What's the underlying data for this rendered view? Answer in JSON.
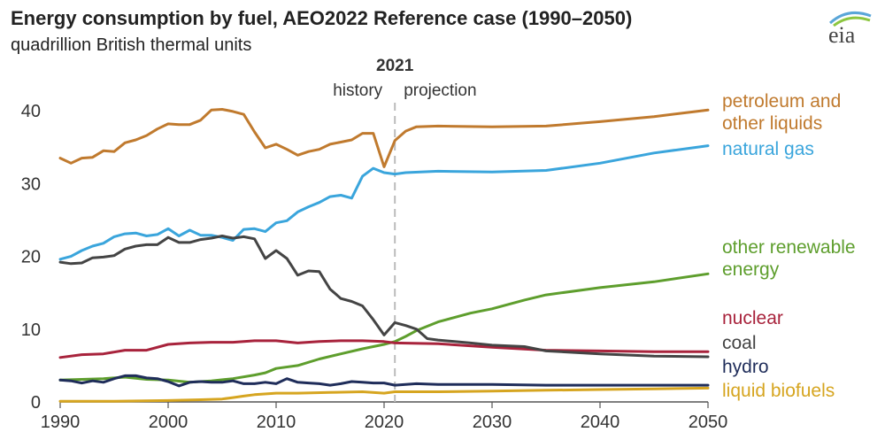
{
  "header": {
    "title": "Energy consumption by fuel, AEO2022 Reference case (1990–2050)",
    "subtitle": "quadrillion British thermal units",
    "logo_text": "eia"
  },
  "chart_data": {
    "type": "line",
    "title": "Energy consumption by fuel, AEO2022 Reference case (1990–2050)",
    "ylabel": "quadrillion British thermal units",
    "xlabel": "",
    "xlim": [
      1990,
      2050
    ],
    "ylim": [
      0,
      45
    ],
    "x_ticks": [
      1990,
      2000,
      2010,
      2020,
      2030,
      2040,
      2050
    ],
    "y_ticks": [
      0,
      10,
      20,
      30,
      40
    ],
    "grid": false,
    "legend": "right-side direct labels",
    "divider": {
      "year": 2021,
      "label": "2021",
      "left_label": "history",
      "right_label": "projection"
    },
    "series": [
      {
        "name": "petroleum and other liquids",
        "label_lines": [
          "petroleum and",
          "other liquids"
        ],
        "color": "#c07a2e",
        "points": [
          [
            1990,
            33.5
          ],
          [
            1991,
            32.8
          ],
          [
            1992,
            33.5
          ],
          [
            1993,
            33.6
          ],
          [
            1994,
            34.5
          ],
          [
            1995,
            34.4
          ],
          [
            1996,
            35.6
          ],
          [
            1997,
            36.0
          ],
          [
            1998,
            36.6
          ],
          [
            1999,
            37.5
          ],
          [
            2000,
            38.2
          ],
          [
            2001,
            38.1
          ],
          [
            2002,
            38.1
          ],
          [
            2003,
            38.7
          ],
          [
            2004,
            40.1
          ],
          [
            2005,
            40.2
          ],
          [
            2006,
            39.9
          ],
          [
            2007,
            39.5
          ],
          [
            2008,
            37.1
          ],
          [
            2009,
            34.9
          ],
          [
            2010,
            35.4
          ],
          [
            2011,
            34.7
          ],
          [
            2012,
            33.9
          ],
          [
            2013,
            34.4
          ],
          [
            2014,
            34.7
          ],
          [
            2015,
            35.4
          ],
          [
            2016,
            35.7
          ],
          [
            2017,
            36.0
          ],
          [
            2018,
            36.9
          ],
          [
            2019,
            36.9
          ],
          [
            2020,
            32.3
          ],
          [
            2021,
            35.9
          ],
          [
            2022,
            37.2
          ],
          [
            2023,
            37.8
          ],
          [
            2025,
            37.9
          ],
          [
            2030,
            37.8
          ],
          [
            2035,
            37.9
          ],
          [
            2040,
            38.5
          ],
          [
            2045,
            39.2
          ],
          [
            2050,
            40.1
          ]
        ]
      },
      {
        "name": "natural gas",
        "label_lines": [
          "natural gas"
        ],
        "color": "#3aa5dc",
        "points": [
          [
            1990,
            19.6
          ],
          [
            1991,
            20.0
          ],
          [
            1992,
            20.8
          ],
          [
            1993,
            21.4
          ],
          [
            1994,
            21.8
          ],
          [
            1995,
            22.7
          ],
          [
            1996,
            23.1
          ],
          [
            1997,
            23.2
          ],
          [
            1998,
            22.8
          ],
          [
            1999,
            23.0
          ],
          [
            2000,
            23.8
          ],
          [
            2001,
            22.8
          ],
          [
            2002,
            23.6
          ],
          [
            2003,
            22.9
          ],
          [
            2004,
            22.9
          ],
          [
            2005,
            22.6
          ],
          [
            2006,
            22.2
          ],
          [
            2007,
            23.7
          ],
          [
            2008,
            23.8
          ],
          [
            2009,
            23.4
          ],
          [
            2010,
            24.6
          ],
          [
            2011,
            24.9
          ],
          [
            2012,
            26.1
          ],
          [
            2013,
            26.8
          ],
          [
            2014,
            27.4
          ],
          [
            2015,
            28.2
          ],
          [
            2016,
            28.4
          ],
          [
            2017,
            28.0
          ],
          [
            2018,
            31.0
          ],
          [
            2019,
            32.1
          ],
          [
            2020,
            31.5
          ],
          [
            2021,
            31.3
          ],
          [
            2022,
            31.5
          ],
          [
            2025,
            31.7
          ],
          [
            2030,
            31.6
          ],
          [
            2035,
            31.8
          ],
          [
            2040,
            32.8
          ],
          [
            2045,
            34.2
          ],
          [
            2050,
            35.2
          ]
        ]
      },
      {
        "name": "other renewable energy",
        "label_lines": [
          "other renewable",
          "energy"
        ],
        "color": "#5e9e2d",
        "points": [
          [
            1990,
            3.0
          ],
          [
            1992,
            3.1
          ],
          [
            1994,
            3.2
          ],
          [
            1996,
            3.4
          ],
          [
            1998,
            3.1
          ],
          [
            2000,
            3.0
          ],
          [
            2002,
            2.7
          ],
          [
            2004,
            2.9
          ],
          [
            2006,
            3.2
          ],
          [
            2008,
            3.7
          ],
          [
            2009,
            4.0
          ],
          [
            2010,
            4.6
          ],
          [
            2012,
            5.0
          ],
          [
            2014,
            5.9
          ],
          [
            2016,
            6.6
          ],
          [
            2018,
            7.3
          ],
          [
            2020,
            7.9
          ],
          [
            2021,
            8.3
          ],
          [
            2022,
            9.0
          ],
          [
            2023,
            9.8
          ],
          [
            2025,
            11.0
          ],
          [
            2028,
            12.2
          ],
          [
            2030,
            12.8
          ],
          [
            2033,
            14.0
          ],
          [
            2035,
            14.7
          ],
          [
            2040,
            15.7
          ],
          [
            2045,
            16.5
          ],
          [
            2050,
            17.6
          ]
        ]
      },
      {
        "name": "nuclear",
        "label_lines": [
          "nuclear"
        ],
        "color": "#a8233c",
        "points": [
          [
            1990,
            6.1
          ],
          [
            1992,
            6.5
          ],
          [
            1994,
            6.6
          ],
          [
            1996,
            7.1
          ],
          [
            1998,
            7.1
          ],
          [
            2000,
            7.9
          ],
          [
            2002,
            8.1
          ],
          [
            2004,
            8.2
          ],
          [
            2006,
            8.2
          ],
          [
            2008,
            8.4
          ],
          [
            2010,
            8.4
          ],
          [
            2012,
            8.1
          ],
          [
            2014,
            8.3
          ],
          [
            2016,
            8.4
          ],
          [
            2018,
            8.4
          ],
          [
            2020,
            8.3
          ],
          [
            2021,
            8.1
          ],
          [
            2025,
            8.0
          ],
          [
            2030,
            7.5
          ],
          [
            2035,
            7.1
          ],
          [
            2040,
            7.0
          ],
          [
            2045,
            6.9
          ],
          [
            2050,
            6.9
          ]
        ]
      },
      {
        "name": "coal",
        "label_lines": [
          "coal"
        ],
        "color": "#444444",
        "points": [
          [
            1990,
            19.2
          ],
          [
            1991,
            19.0
          ],
          [
            1992,
            19.1
          ],
          [
            1993,
            19.8
          ],
          [
            1994,
            19.9
          ],
          [
            1995,
            20.1
          ],
          [
            1996,
            21.0
          ],
          [
            1997,
            21.4
          ],
          [
            1998,
            21.6
          ],
          [
            1999,
            21.6
          ],
          [
            2000,
            22.6
          ],
          [
            2001,
            21.9
          ],
          [
            2002,
            21.9
          ],
          [
            2003,
            22.3
          ],
          [
            2004,
            22.5
          ],
          [
            2005,
            22.8
          ],
          [
            2006,
            22.5
          ],
          [
            2007,
            22.7
          ],
          [
            2008,
            22.4
          ],
          [
            2009,
            19.7
          ],
          [
            2010,
            20.8
          ],
          [
            2011,
            19.7
          ],
          [
            2012,
            17.4
          ],
          [
            2013,
            18.0
          ],
          [
            2014,
            17.9
          ],
          [
            2015,
            15.5
          ],
          [
            2016,
            14.2
          ],
          [
            2017,
            13.8
          ],
          [
            2018,
            13.2
          ],
          [
            2019,
            11.3
          ],
          [
            2020,
            9.2
          ],
          [
            2021,
            10.9
          ],
          [
            2022,
            10.5
          ],
          [
            2023,
            10.0
          ],
          [
            2024,
            8.7
          ],
          [
            2025,
            8.5
          ],
          [
            2028,
            8.1
          ],
          [
            2030,
            7.8
          ],
          [
            2033,
            7.6
          ],
          [
            2035,
            7.0
          ],
          [
            2040,
            6.6
          ],
          [
            2045,
            6.3
          ],
          [
            2050,
            6.2
          ]
        ]
      },
      {
        "name": "hydro",
        "label_lines": [
          "hydro"
        ],
        "color": "#1f2d5a",
        "points": [
          [
            1990,
            3.0
          ],
          [
            1991,
            2.9
          ],
          [
            1992,
            2.6
          ],
          [
            1993,
            2.9
          ],
          [
            1994,
            2.7
          ],
          [
            1995,
            3.2
          ],
          [
            1996,
            3.6
          ],
          [
            1997,
            3.6
          ],
          [
            1998,
            3.3
          ],
          [
            1999,
            3.2
          ],
          [
            2000,
            2.8
          ],
          [
            2001,
            2.2
          ],
          [
            2002,
            2.7
          ],
          [
            2003,
            2.8
          ],
          [
            2004,
            2.7
          ],
          [
            2005,
            2.7
          ],
          [
            2006,
            2.9
          ],
          [
            2007,
            2.5
          ],
          [
            2008,
            2.5
          ],
          [
            2009,
            2.7
          ],
          [
            2010,
            2.5
          ],
          [
            2011,
            3.2
          ],
          [
            2012,
            2.7
          ],
          [
            2013,
            2.6
          ],
          [
            2014,
            2.5
          ],
          [
            2015,
            2.3
          ],
          [
            2016,
            2.5
          ],
          [
            2017,
            2.8
          ],
          [
            2018,
            2.7
          ],
          [
            2019,
            2.6
          ],
          [
            2020,
            2.6
          ],
          [
            2021,
            2.3
          ],
          [
            2023,
            2.5
          ],
          [
            2025,
            2.4
          ],
          [
            2030,
            2.4
          ],
          [
            2035,
            2.3
          ],
          [
            2040,
            2.3
          ],
          [
            2045,
            2.3
          ],
          [
            2050,
            2.3
          ]
        ]
      },
      {
        "name": "liquid biofuels",
        "label_lines": [
          "liquid biofuels"
        ],
        "color": "#d6a520",
        "points": [
          [
            1990,
            0.1
          ],
          [
            1995,
            0.1
          ],
          [
            2000,
            0.2
          ],
          [
            2003,
            0.3
          ],
          [
            2005,
            0.4
          ],
          [
            2006,
            0.6
          ],
          [
            2007,
            0.8
          ],
          [
            2008,
            1.0
          ],
          [
            2010,
            1.2
          ],
          [
            2012,
            1.2
          ],
          [
            2015,
            1.3
          ],
          [
            2018,
            1.4
          ],
          [
            2020,
            1.2
          ],
          [
            2021,
            1.4
          ],
          [
            2025,
            1.4
          ],
          [
            2030,
            1.5
          ],
          [
            2035,
            1.6
          ],
          [
            2040,
            1.7
          ],
          [
            2045,
            1.8
          ],
          [
            2050,
            1.9
          ]
        ]
      }
    ]
  }
}
